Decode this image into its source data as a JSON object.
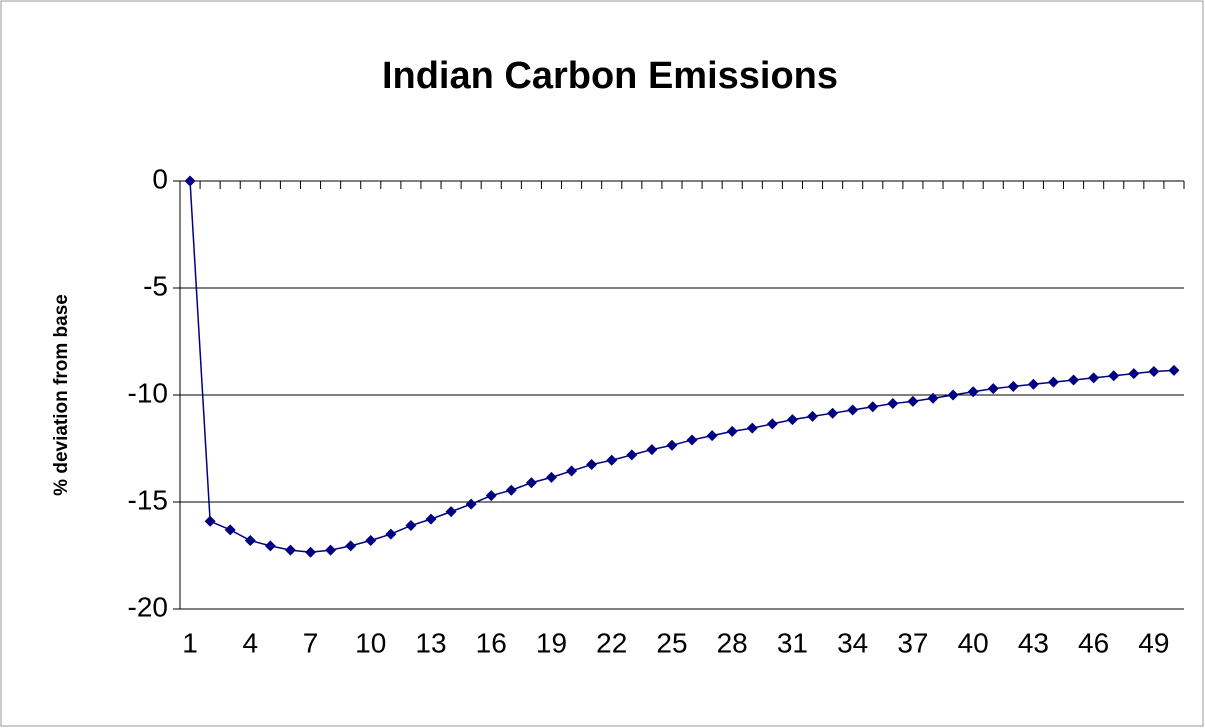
{
  "chart_data": {
    "type": "line",
    "title": "Indian Carbon Emissions",
    "y_label": "% deviation from base",
    "categories": [
      1,
      null,
      null,
      4,
      null,
      null,
      7,
      null,
      null,
      10,
      null,
      null,
      13,
      null,
      null,
      16,
      null,
      null,
      19,
      null,
      null,
      22,
      null,
      null,
      25,
      null,
      null,
      28,
      null,
      null,
      31,
      null,
      null,
      34,
      null,
      null,
      37,
      null,
      null,
      40,
      null,
      null,
      43,
      null,
      null,
      46,
      null,
      null,
      49,
      null
    ],
    "series": [
      {
        "color": "#000080",
        "values": [
          0,
          -15.9,
          -16.3,
          -16.8,
          -17.05,
          -17.25,
          -17.35,
          -17.25,
          -17.05,
          -16.8,
          -16.5,
          -16.1,
          -15.8,
          -15.45,
          -15.1,
          -14.7,
          -14.45,
          -14.1,
          -13.85,
          -13.55,
          -13.25,
          -13.05,
          -12.8,
          -12.55,
          -12.35,
          -12.1,
          -11.9,
          -11.7,
          -11.55,
          -11.35,
          -11.15,
          -11.0,
          -10.85,
          -10.7,
          -10.55,
          -10.4,
          -10.3,
          -10.15,
          -10.0,
          -9.85,
          -9.7,
          -9.6,
          -9.5,
          -9.4,
          -9.3,
          -9.2,
          -9.1,
          -9.0,
          -8.9,
          -8.85
        ]
      }
    ],
    "ylim": [
      -20,
      0
    ],
    "yticks": [
      0,
      -5,
      -10,
      -15,
      -20
    ],
    "grid": true
  }
}
